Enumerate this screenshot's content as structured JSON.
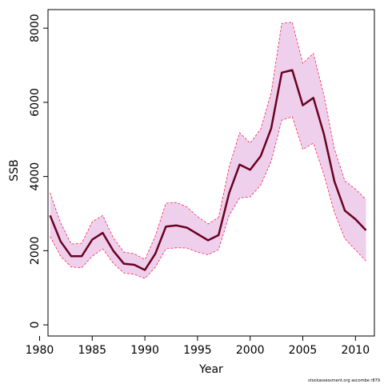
{
  "chart_data": {
    "type": "line",
    "xlabel": "Year",
    "ylabel": "SSB",
    "xlim": [
      1980.8,
      2011.8
    ],
    "ylim": [
      -300,
      8500
    ],
    "x_ticks": [
      1980,
      1985,
      1990,
      1995,
      2000,
      2005,
      2010
    ],
    "y_ticks": [
      0,
      2000,
      4000,
      6000,
      8000
    ],
    "grid": false,
    "credit": "stockassessment.org ascombe r879",
    "colors": {
      "line": "#6b0020",
      "band_fill": "#eed0ec",
      "band_edge": "#ff2050"
    },
    "x": [
      1981,
      1982,
      1983,
      1984,
      1985,
      1986,
      1987,
      1988,
      1989,
      1990,
      1991,
      1992,
      1993,
      1994,
      1995,
      1996,
      1997,
      1998,
      1999,
      2000,
      2001,
      2002,
      2003,
      2004,
      2005,
      2006,
      2007,
      2008,
      2009,
      2010,
      2011
    ],
    "series": [
      {
        "values": [
          2950,
          2250,
          1850,
          1850,
          2300,
          2480,
          2000,
          1650,
          1620,
          1480,
          1920,
          2650,
          2680,
          2620,
          2450,
          2280,
          2420,
          3550,
          4320,
          4180,
          4550,
          5300,
          6800,
          6870,
          5920,
          6120,
          5150,
          3870,
          3080,
          2850,
          2550
        ]
      },
      {
        "values": [
          3560,
          2750,
          2180,
          2200,
          2780,
          2950,
          2350,
          1960,
          1920,
          1760,
          2400,
          3280,
          3300,
          3180,
          2920,
          2720,
          2900,
          4250,
          5180,
          4900,
          5280,
          6260,
          8130,
          8160,
          7050,
          7320,
          6200,
          4740,
          3880,
          3660,
          3380
        ]
      },
      {
        "values": [
          2380,
          1850,
          1560,
          1540,
          1850,
          2050,
          1660,
          1400,
          1360,
          1250,
          1560,
          2050,
          2080,
          2070,
          1960,
          1890,
          2030,
          2950,
          3420,
          3450,
          3770,
          4410,
          5520,
          5610,
          4730,
          4900,
          4050,
          3030,
          2320,
          2020,
          1720
        ]
      }
    ]
  }
}
